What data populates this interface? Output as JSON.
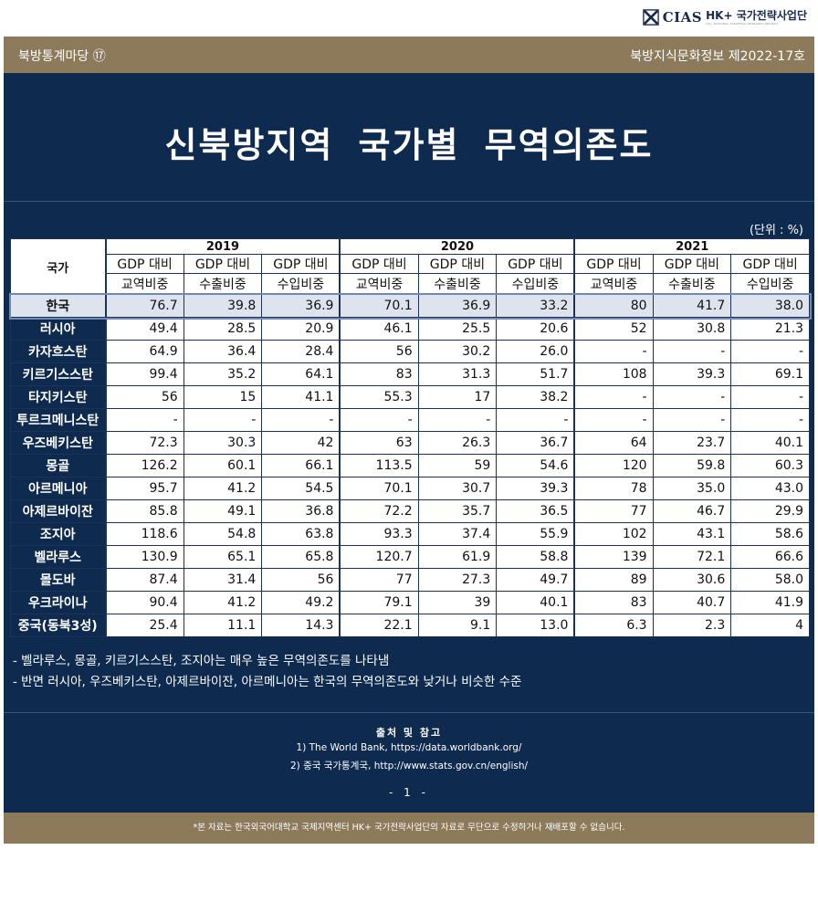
{
  "logo": {
    "name": "CIAS",
    "hk": "HK+ 국가전략사업단",
    "sub": "HK+ NATIONAL STRATEGIC RESEARCH PROJECT"
  },
  "topbar": {
    "left": "북방통계마당  ⑰",
    "right": "북방지식문화정보  제2022-17호"
  },
  "title": "신북방지역  국가별  무역의존도",
  "unit": "(단위 : %)",
  "table": {
    "country_header": "국가",
    "years": [
      "2019",
      "2020",
      "2021"
    ],
    "sub_line1": [
      "GDP 대비",
      "GDP 대비",
      "GDP 대비"
    ],
    "sub_line2": [
      "교역비중",
      "수출비중",
      "수입비중"
    ],
    "rows": [
      {
        "name": "한국",
        "values": [
          "76.7",
          "39.8",
          "36.9",
          "70.1",
          "36.9",
          "33.2",
          "80",
          "41.7",
          "38.0"
        ]
      },
      {
        "name": "러시아",
        "values": [
          "49.4",
          "28.5",
          "20.9",
          "46.1",
          "25.5",
          "20.6",
          "52",
          "30.8",
          "21.3"
        ]
      },
      {
        "name": "카자흐스탄",
        "values": [
          "64.9",
          "36.4",
          "28.4",
          "56",
          "30.2",
          "26.0",
          "-",
          "-",
          "-"
        ]
      },
      {
        "name": "키르기스스탄",
        "values": [
          "99.4",
          "35.2",
          "64.1",
          "83",
          "31.3",
          "51.7",
          "108",
          "39.3",
          "69.1"
        ]
      },
      {
        "name": "타지키스탄",
        "values": [
          "56",
          "15",
          "41.1",
          "55.3",
          "17",
          "38.2",
          "-",
          "-",
          "-"
        ]
      },
      {
        "name": "투르크메니스탄",
        "values": [
          "-",
          "-",
          "-",
          "-",
          "-",
          "-",
          "-",
          "-",
          "-"
        ]
      },
      {
        "name": "우즈베키스탄",
        "values": [
          "72.3",
          "30.3",
          "42",
          "63",
          "26.3",
          "36.7",
          "64",
          "23.7",
          "40.1"
        ]
      },
      {
        "name": "몽골",
        "values": [
          "126.2",
          "60.1",
          "66.1",
          "113.5",
          "59",
          "54.6",
          "120",
          "59.8",
          "60.3"
        ]
      },
      {
        "name": "아르메니아",
        "values": [
          "95.7",
          "41.2",
          "54.5",
          "70.1",
          "30.7",
          "39.3",
          "78",
          "35.0",
          "43.0"
        ]
      },
      {
        "name": "아제르바이잔",
        "values": [
          "85.8",
          "49.1",
          "36.8",
          "72.2",
          "35.7",
          "36.5",
          "77",
          "46.7",
          "29.9"
        ]
      },
      {
        "name": "조지아",
        "values": [
          "118.6",
          "54.8",
          "63.8",
          "93.3",
          "37.4",
          "55.9",
          "102",
          "43.1",
          "58.6"
        ]
      },
      {
        "name": "벨라루스",
        "values": [
          "130.9",
          "65.1",
          "65.8",
          "120.7",
          "61.9",
          "58.8",
          "139",
          "72.1",
          "66.6"
        ]
      },
      {
        "name": "몰도바",
        "values": [
          "87.4",
          "31.4",
          "56",
          "77",
          "27.3",
          "49.7",
          "89",
          "30.6",
          "58.0"
        ]
      },
      {
        "name": "우크라이나",
        "values": [
          "90.4",
          "41.2",
          "49.2",
          "79.1",
          "39",
          "40.1",
          "83",
          "40.7",
          "41.9"
        ]
      },
      {
        "name": "중국(동북3성)",
        "values": [
          "25.4",
          "11.1",
          "14.3",
          "22.1",
          "9.1",
          "13.0",
          "6.3",
          "2.3",
          "4"
        ]
      }
    ]
  },
  "notes": [
    "- 벨라루스, 몽골, 키르기스스탄, 조지아는 매우 높은 무역의존도를 나타냄",
    "- 반면 러시아, 우즈베키스탄, 아제르바이잔, 아르메니아는 한국의 무역의존도와 낮거나 비슷한 수준"
  ],
  "sources": {
    "heading": "출처 및 참고",
    "items": [
      "1) The World Bank, https://data.worldbank.org/",
      "2) 중국 국가통계국, http://www.stats.gov.cn/english/"
    ],
    "page": "- 1 -"
  },
  "footer": "*본 자료는 한국외국어대학교 국제지역센터 HK+ 국가전략사업단의 자료로 무단으로 수정하거나 재배포할 수 없습니다.",
  "colors": {
    "navy": "#0e2a4e",
    "gold": "#8c7a5b",
    "korea_row": "#dde4ee"
  }
}
